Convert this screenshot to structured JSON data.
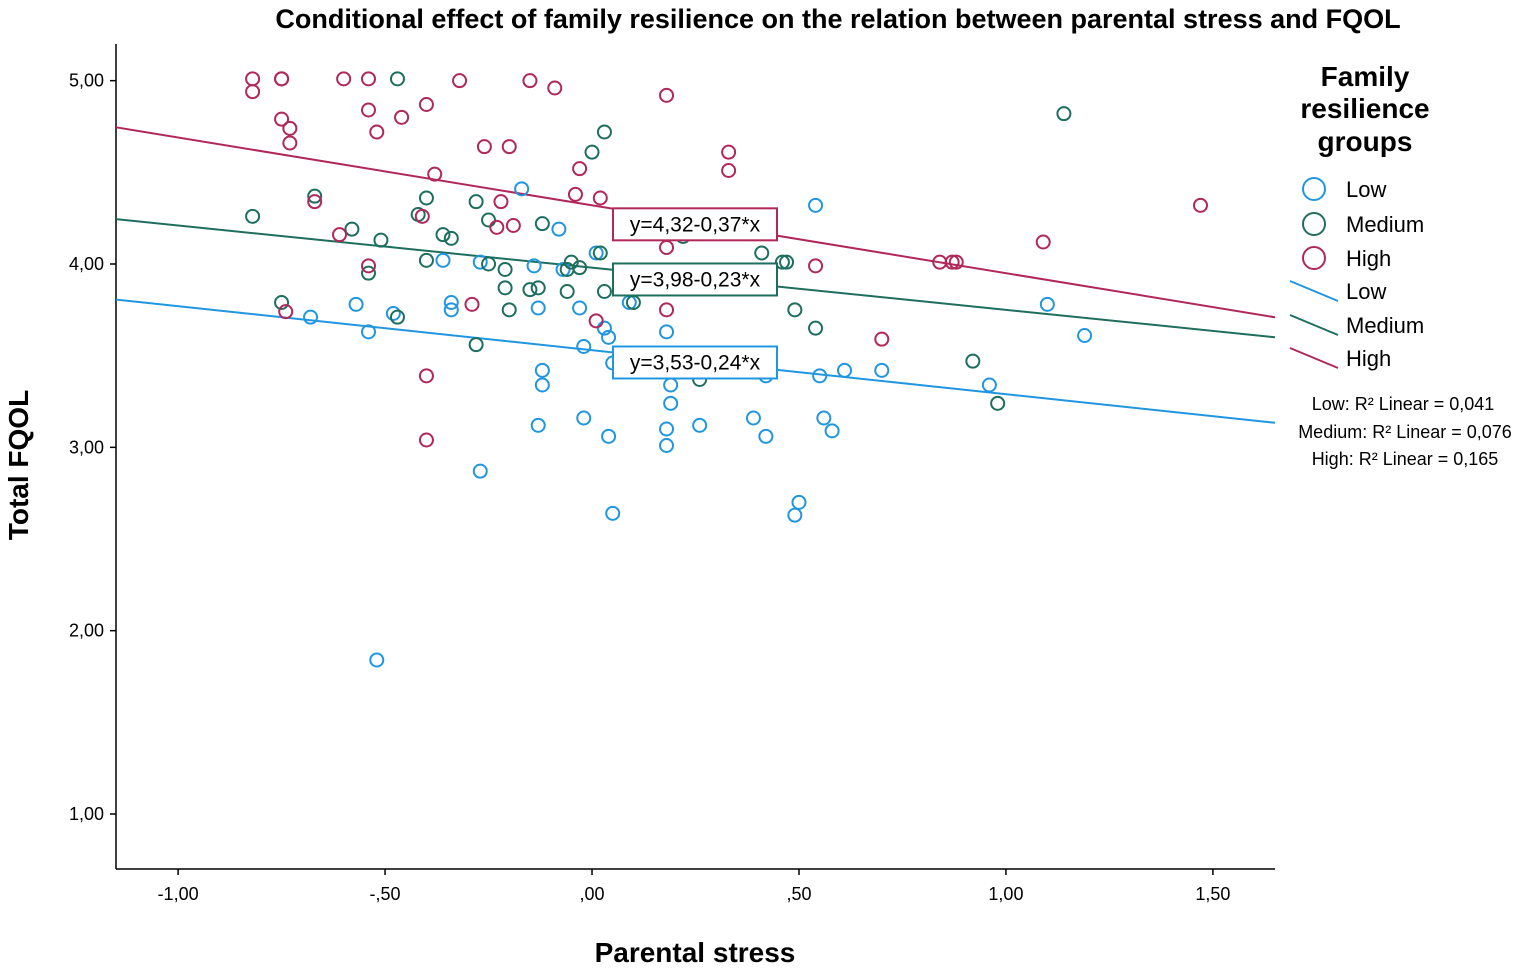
{
  "chart_data": {
    "type": "scatter",
    "title": "Conditional effect of family resilience on the relation between parental stress and FQOL",
    "xlabel": "Parental stress",
    "ylabel": "Total FQOL",
    "xlim": [
      -1.15,
      1.65
    ],
    "ylim": [
      0.7,
      5.2
    ],
    "x_ticks": [
      -1.0,
      -0.5,
      0.0,
      0.5,
      1.0,
      1.5
    ],
    "x_tick_labels": [
      "-1,00",
      "-,50",
      ",00",
      ",50",
      "1,00",
      "1,50"
    ],
    "y_ticks": [
      1.0,
      2.0,
      3.0,
      4.0,
      5.0
    ],
    "y_tick_labels": [
      "1,00",
      "2,00",
      "3,00",
      "4,00",
      "5,00"
    ],
    "grid": false,
    "legend": {
      "title": "Family resilience groups",
      "title_lines": [
        "Family",
        "resilience",
        "groups"
      ],
      "position": "right",
      "marker_entries": [
        "Low",
        "Medium",
        "High"
      ],
      "line_entries": [
        "Low",
        "Medium",
        "High"
      ]
    },
    "r2_labels": [
      "Low: R² Linear = 0,041",
      "Medium: R² Linear = 0,076",
      "High: R² Linear = 0,165"
    ],
    "series": [
      {
        "name": "Low",
        "color": "#2196e0",
        "fit": {
          "intercept": 3.53,
          "slope": -0.24,
          "equation": "y=3,53-0,24*x"
        },
        "points": [
          [
            -0.52,
            1.84
          ],
          [
            -0.27,
            2.87
          ],
          [
            0.05,
            2.64
          ],
          [
            0.49,
            2.63
          ],
          [
            0.5,
            2.7
          ],
          [
            -0.13,
            3.12
          ],
          [
            -0.02,
            3.16
          ],
          [
            0.04,
            3.06
          ],
          [
            0.18,
            3.1
          ],
          [
            0.18,
            3.01
          ],
          [
            0.26,
            3.12
          ],
          [
            0.39,
            3.16
          ],
          [
            0.42,
            3.06
          ],
          [
            0.56,
            3.16
          ],
          [
            0.58,
            3.09
          ],
          [
            0.19,
            3.24
          ],
          [
            0.19,
            3.34
          ],
          [
            -0.12,
            3.34
          ],
          [
            -0.12,
            3.42
          ],
          [
            0.55,
            3.39
          ],
          [
            0.61,
            3.42
          ],
          [
            0.7,
            3.42
          ],
          [
            0.96,
            3.34
          ],
          [
            -0.54,
            3.63
          ],
          [
            -0.68,
            3.71
          ],
          [
            -0.48,
            3.73
          ],
          [
            -0.57,
            3.78
          ],
          [
            -0.34,
            3.75
          ],
          [
            -0.34,
            3.79
          ],
          [
            -0.13,
            3.76
          ],
          [
            -0.03,
            3.76
          ],
          [
            -0.02,
            3.55
          ],
          [
            0.04,
            3.6
          ],
          [
            0.05,
            3.46
          ],
          [
            0.03,
            3.65
          ],
          [
            -0.36,
            4.02
          ],
          [
            -0.27,
            4.01
          ],
          [
            -0.14,
            3.99
          ],
          [
            -0.08,
            4.19
          ],
          [
            -0.17,
            4.41
          ],
          [
            0.18,
            3.63
          ],
          [
            0.09,
            3.79
          ],
          [
            0.54,
            4.32
          ],
          [
            1.1,
            3.78
          ],
          [
            1.19,
            3.61
          ],
          [
            -0.07,
            3.97
          ],
          [
            0.01,
            4.06
          ],
          [
            0.42,
            3.39
          ]
        ]
      },
      {
        "name": "Medium",
        "color": "#1e6e5e",
        "fit": {
          "intercept": 3.98,
          "slope": -0.23,
          "equation": "y=3,98-0,23*x"
        },
        "points": [
          [
            -0.82,
            4.26
          ],
          [
            -0.67,
            4.37
          ],
          [
            -0.58,
            4.19
          ],
          [
            -0.51,
            4.13
          ],
          [
            -0.54,
            3.95
          ],
          [
            -0.47,
            3.71
          ],
          [
            -0.47,
            5.01
          ],
          [
            -0.42,
            4.27
          ],
          [
            -0.4,
            4.36
          ],
          [
            -0.36,
            4.16
          ],
          [
            -0.34,
            4.14
          ],
          [
            -0.4,
            4.02
          ],
          [
            -0.28,
            4.34
          ],
          [
            -0.25,
            4.24
          ],
          [
            -0.21,
            3.97
          ],
          [
            -0.25,
            4.0
          ],
          [
            -0.21,
            3.87
          ],
          [
            -0.2,
            3.75
          ],
          [
            -0.15,
            3.86
          ],
          [
            -0.13,
            3.87
          ],
          [
            -0.12,
            4.22
          ],
          [
            -0.06,
            3.85
          ],
          [
            -0.05,
            4.01
          ],
          [
            -0.06,
            3.97
          ],
          [
            -0.03,
            3.98
          ],
          [
            0.0,
            4.61
          ],
          [
            0.02,
            4.06
          ],
          [
            0.03,
            4.72
          ],
          [
            0.03,
            3.85
          ],
          [
            0.1,
            3.79
          ],
          [
            0.22,
            4.15
          ],
          [
            0.26,
            3.37
          ],
          [
            0.41,
            4.06
          ],
          [
            0.46,
            4.01
          ],
          [
            0.47,
            4.01
          ],
          [
            0.49,
            3.75
          ],
          [
            0.54,
            3.65
          ],
          [
            -0.75,
            3.79
          ],
          [
            -0.28,
            3.56
          ],
          [
            0.92,
            3.47
          ],
          [
            0.98,
            3.24
          ],
          [
            1.14,
            4.82
          ]
        ]
      },
      {
        "name": "High",
        "color": "#b0285a",
        "fit": {
          "intercept": 4.32,
          "slope": -0.37,
          "equation": "y=4,32-0,37*x"
        },
        "points": [
          [
            -0.82,
            5.01
          ],
          [
            -0.82,
            4.94
          ],
          [
            -0.75,
            5.01
          ],
          [
            -0.75,
            5.01
          ],
          [
            -0.75,
            4.79
          ],
          [
            -0.73,
            4.74
          ],
          [
            -0.73,
            4.66
          ],
          [
            -0.6,
            5.01
          ],
          [
            -0.54,
            5.01
          ],
          [
            -0.54,
            4.84
          ],
          [
            -0.52,
            4.72
          ],
          [
            -0.46,
            4.8
          ],
          [
            -0.4,
            4.87
          ],
          [
            -0.38,
            4.49
          ],
          [
            -0.32,
            5.0
          ],
          [
            -0.26,
            4.64
          ],
          [
            -0.22,
            4.34
          ],
          [
            -0.2,
            4.64
          ],
          [
            -0.15,
            5.0
          ],
          [
            -0.09,
            4.96
          ],
          [
            -0.61,
            4.16
          ],
          [
            -0.67,
            4.34
          ],
          [
            -0.54,
            3.99
          ],
          [
            -0.41,
            4.26
          ],
          [
            -0.23,
            4.2
          ],
          [
            -0.19,
            4.21
          ],
          [
            -0.04,
            4.38
          ],
          [
            -0.03,
            4.52
          ],
          [
            0.02,
            4.36
          ],
          [
            0.18,
            4.92
          ],
          [
            0.33,
            4.61
          ],
          [
            0.33,
            4.51
          ],
          [
            0.18,
            4.09
          ],
          [
            0.18,
            3.75
          ],
          [
            -0.29,
            3.78
          ],
          [
            -0.74,
            3.74
          ],
          [
            -0.4,
            3.39
          ],
          [
            -0.4,
            3.04
          ],
          [
            0.01,
            3.69
          ],
          [
            0.54,
            3.99
          ],
          [
            0.7,
            3.59
          ],
          [
            0.84,
            4.01
          ],
          [
            0.87,
            4.01
          ],
          [
            0.88,
            4.01
          ],
          [
            1.09,
            4.12
          ],
          [
            1.47,
            4.32
          ]
        ]
      }
    ]
  }
}
